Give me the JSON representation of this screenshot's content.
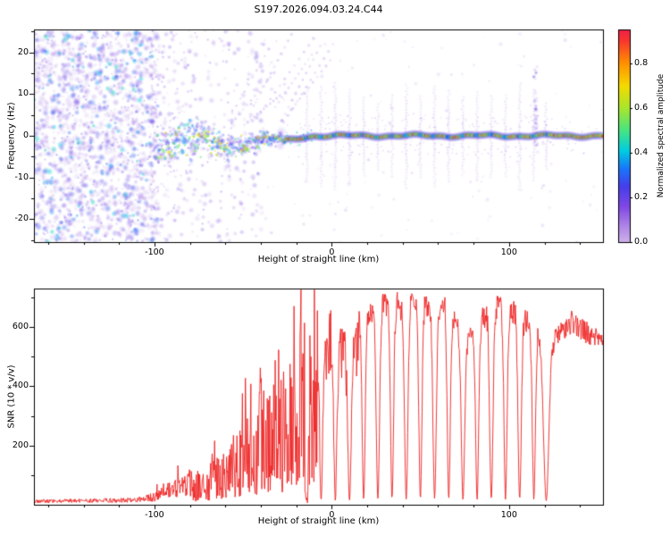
{
  "title": "S197.2026.094.03.24.C44",
  "chart_data": [
    {
      "type": "heatmap",
      "xlabel": "Height of straight line (km)",
      "ylabel": "Frequency (Hz)",
      "xlim": [
        -168,
        153
      ],
      "ylim": [
        -25.5,
        25.5
      ],
      "xticks": [
        -100,
        0,
        100
      ],
      "yticks": [
        -20,
        -10,
        0,
        10,
        20
      ],
      "regions": {
        "noise_end_km": -100,
        "transition_end_km": -26,
        "signal_center_hz": 0
      },
      "streak_positions_km": [
        -14,
        -6,
        2,
        10,
        18,
        26,
        34,
        42,
        50,
        58,
        66,
        74,
        82,
        90,
        98,
        106,
        114,
        121
      ],
      "tall_streak_km": 115,
      "colorbar": {
        "label": "Normalized spectral amplitude",
        "ticks": [
          0.0,
          0.2,
          0.4,
          0.6,
          0.8
        ],
        "range": [
          0,
          0.95
        ],
        "colormap_stops": [
          {
            "t": 0.0,
            "c": "#cdb2eb"
          },
          {
            "t": 0.08,
            "c": "#ac80e6"
          },
          {
            "t": 0.16,
            "c": "#8048e4"
          },
          {
            "t": 0.25,
            "c": "#463eeb"
          },
          {
            "t": 0.33,
            "c": "#1976fa"
          },
          {
            "t": 0.41,
            "c": "#00cde1"
          },
          {
            "t": 0.5,
            "c": "#46e482"
          },
          {
            "t": 0.6,
            "c": "#a8e62d"
          },
          {
            "t": 0.7,
            "c": "#f5da00"
          },
          {
            "t": 0.8,
            "c": "#ff9100"
          },
          {
            "t": 0.9,
            "c": "#f8372d"
          },
          {
            "t": 1.0,
            "c": "#e80a5f"
          }
        ]
      }
    },
    {
      "type": "line",
      "xlabel": "Height of straight line (km)",
      "ylabel": "SNR (10 * v/v)",
      "xlim": [
        -168,
        153
      ],
      "ylim": [
        0,
        730
      ],
      "xticks": [
        -100,
        0,
        100
      ],
      "yticks": [
        200,
        400,
        600
      ],
      "line_color": "#ee2222",
      "envelope": [
        [
          -168,
          12
        ],
        [
          -150,
          13
        ],
        [
          -130,
          14
        ],
        [
          -110,
          16
        ],
        [
          -100,
          28
        ],
        [
          -92,
          50
        ],
        [
          -84,
          70
        ],
        [
          -76,
          90
        ],
        [
          -70,
          115
        ],
        [
          -64,
          150
        ],
        [
          -58,
          185
        ],
        [
          -52,
          230
        ],
        [
          -47,
          300
        ],
        [
          -43,
          260
        ],
        [
          -39,
          380
        ],
        [
          -35,
          320
        ],
        [
          -31,
          540
        ],
        [
          -28,
          350
        ],
        [
          -25,
          600
        ],
        [
          -22,
          430
        ],
        [
          -19,
          620
        ],
        [
          -16,
          560
        ],
        [
          -13,
          640
        ],
        [
          -10,
          580
        ],
        [
          -7,
          630
        ],
        [
          -4,
          600
        ],
        [
          0,
          650
        ],
        [
          4,
          620
        ],
        [
          8,
          640
        ],
        [
          12,
          600
        ],
        [
          16,
          650
        ],
        [
          20,
          670
        ],
        [
          24,
          690
        ],
        [
          28,
          700
        ],
        [
          32,
          690
        ],
        [
          36,
          705
        ],
        [
          40,
          690
        ],
        [
          44,
          700
        ],
        [
          48,
          715
        ],
        [
          52,
          700
        ],
        [
          56,
          690
        ],
        [
          60,
          700
        ],
        [
          64,
          710
        ],
        [
          68,
          660
        ],
        [
          72,
          610
        ],
        [
          76,
          560
        ],
        [
          80,
          600
        ],
        [
          84,
          640
        ],
        [
          88,
          680
        ],
        [
          92,
          700
        ],
        [
          96,
          690
        ],
        [
          100,
          670
        ],
        [
          104,
          690
        ],
        [
          108,
          650
        ],
        [
          112,
          630
        ],
        [
          116,
          610
        ],
        [
          120,
          480
        ],
        [
          124,
          560
        ],
        [
          128,
          590
        ],
        [
          132,
          620
        ],
        [
          136,
          640
        ],
        [
          140,
          620
        ],
        [
          144,
          600
        ],
        [
          148,
          580
        ],
        [
          153,
          570
        ]
      ],
      "dropouts": [
        {
          "x": -14,
          "w": 2.2
        },
        {
          "x": -6,
          "w": 2.2
        },
        {
          "x": 2,
          "w": 2.2
        },
        {
          "x": 10,
          "w": 2.4
        },
        {
          "x": 18,
          "w": 2.2
        },
        {
          "x": 26,
          "w": 2.4
        },
        {
          "x": 34,
          "w": 2.2
        },
        {
          "x": 42,
          "w": 2.4
        },
        {
          "x": 50,
          "w": 2.2
        },
        {
          "x": 58,
          "w": 2.4
        },
        {
          "x": 66,
          "w": 2.2
        },
        {
          "x": 74,
          "w": 2.4
        },
        {
          "x": 82,
          "w": 2.2
        },
        {
          "x": 90,
          "w": 2.4
        },
        {
          "x": 98,
          "w": 2.2
        },
        {
          "x": 106,
          "w": 2.4
        },
        {
          "x": 114,
          "w": 2.2
        },
        {
          "x": 121,
          "w": 3.5
        }
      ]
    }
  ]
}
